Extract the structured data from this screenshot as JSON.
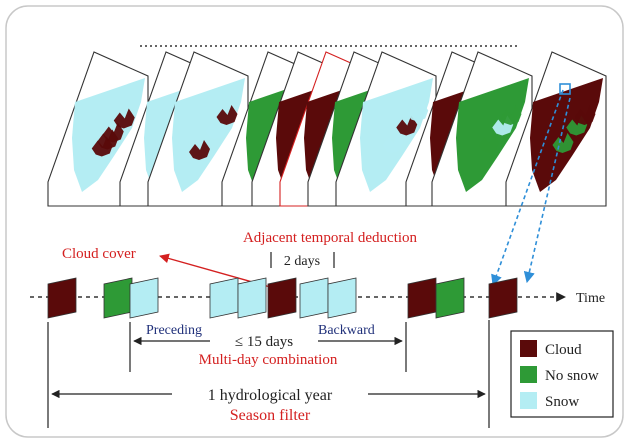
{
  "labels": {
    "adjacent": "Adjacent temporal deduction",
    "cloud_cover": "Cloud cover",
    "two_days": "2 days",
    "time": "Time",
    "preceding": "Preceding",
    "fifteen_days": "≤ 15 days",
    "backward": "Backward",
    "multi_day": "Multi-day combination",
    "hydro_year": "1 hydrological year",
    "season_filter": "Season filter"
  },
  "legend": [
    {
      "label": "Cloud",
      "color": "#5a0a0a"
    },
    {
      "label": "No snow",
      "color": "#2e9a36"
    },
    {
      "label": "Snow",
      "color": "#b4edf3"
    }
  ],
  "colors": {
    "cloud": "#5a0a0a",
    "no_snow": "#2e9a36",
    "snow": "#b4edf3",
    "highlight": "#d42020",
    "blue_text": "#20307a",
    "link": "#2f8fd8",
    "frame": "#c8c8c8"
  },
  "map_stack": [
    {
      "scene": "cloud-snow-mix"
    },
    {
      "scene": "snow-green-mix"
    },
    {
      "scene": "snow-heavy"
    },
    {
      "scene": "green-edge"
    },
    {
      "scene": "cloud-edge"
    },
    {
      "scene": "highlighted-cloud"
    },
    {
      "scene": "green-left"
    },
    {
      "scene": "snow-full"
    },
    {
      "scene": "cloud-left"
    },
    {
      "scene": "green-full"
    },
    {
      "scene": "cloud-green-roi"
    }
  ],
  "timeline_tiles": [
    {
      "kind": "cloud"
    },
    {
      "kind": "no_snow"
    },
    {
      "kind": "snow"
    },
    {
      "kind": "snow"
    },
    {
      "kind": "snow"
    },
    {
      "kind": "cloud"
    },
    {
      "kind": "snow"
    },
    {
      "kind": "snow"
    },
    {
      "kind": "cloud"
    },
    {
      "kind": "no_snow"
    },
    {
      "kind": "cloud"
    }
  ]
}
